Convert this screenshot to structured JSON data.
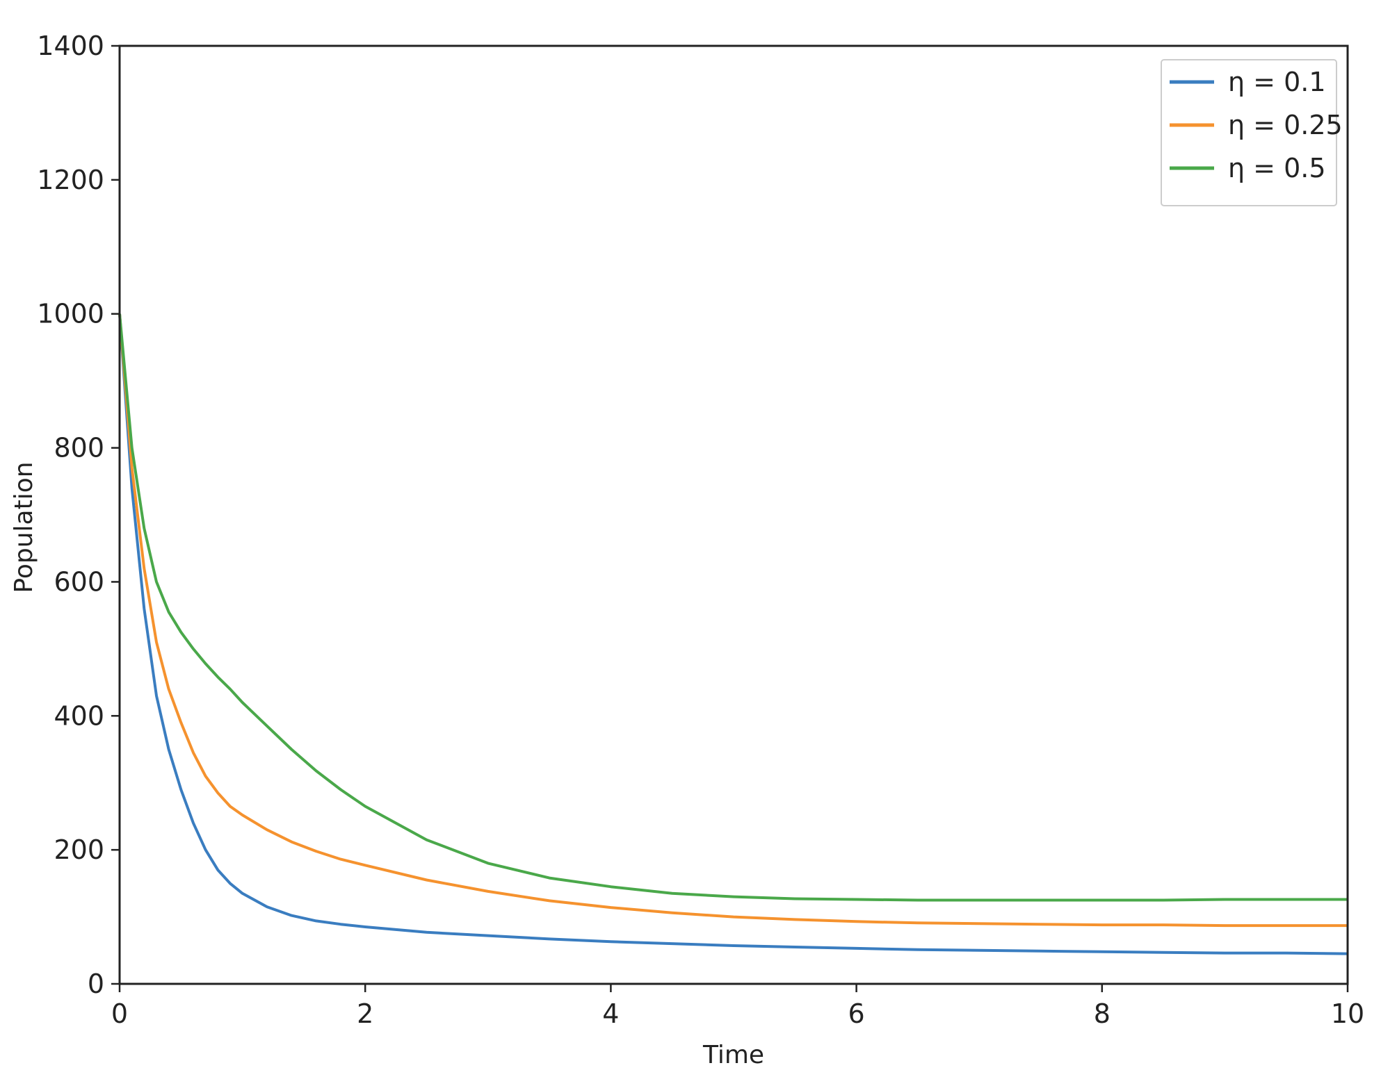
{
  "chart_data": {
    "type": "line",
    "title": "",
    "xlabel": "Time",
    "ylabel": "Population",
    "xlim": [
      0,
      10
    ],
    "ylim": [
      0,
      1400
    ],
    "xticks": [
      "0",
      "2",
      "4",
      "6",
      "8",
      "10"
    ],
    "yticks": [
      "0",
      "200",
      "400",
      "600",
      "800",
      "1000",
      "1200",
      "1400"
    ],
    "grid": false,
    "legend_position": "top-right",
    "series": [
      {
        "name": "η = 0.1",
        "color": "#3a7dc0",
        "x": [
          0,
          0.1,
          0.2,
          0.3,
          0.4,
          0.5,
          0.6,
          0.7,
          0.8,
          0.9,
          1.0,
          1.2,
          1.4,
          1.6,
          1.8,
          2.0,
          2.5,
          3.0,
          3.5,
          4.0,
          4.5,
          5.0,
          5.5,
          6.0,
          6.5,
          7.0,
          7.5,
          8.0,
          8.5,
          9.0,
          9.5,
          10.0
        ],
        "y": [
          1000,
          740,
          560,
          430,
          350,
          290,
          240,
          200,
          170,
          150,
          135,
          115,
          102,
          94,
          89,
          85,
          77,
          72,
          67,
          63,
          60,
          57,
          55,
          53,
          51,
          50,
          49,
          48,
          47,
          46,
          46,
          45
        ]
      },
      {
        "name": "η = 0.25",
        "color": "#f5922e",
        "x": [
          0,
          0.1,
          0.2,
          0.3,
          0.4,
          0.5,
          0.6,
          0.7,
          0.8,
          0.9,
          1.0,
          1.2,
          1.4,
          1.6,
          1.8,
          2.0,
          2.5,
          3.0,
          3.5,
          4.0,
          4.5,
          5.0,
          5.5,
          6.0,
          6.5,
          7.0,
          7.5,
          8.0,
          8.5,
          9.0,
          9.5,
          10.0
        ],
        "y": [
          1000,
          770,
          620,
          510,
          440,
          390,
          345,
          310,
          285,
          265,
          252,
          230,
          212,
          198,
          186,
          177,
          155,
          138,
          124,
          114,
          106,
          100,
          96,
          93,
          91,
          90,
          89,
          88,
          88,
          87,
          87,
          87
        ]
      },
      {
        "name": "η = 0.5",
        "color": "#4aa84a",
        "x": [
          0,
          0.1,
          0.2,
          0.3,
          0.4,
          0.5,
          0.6,
          0.7,
          0.8,
          0.9,
          1.0,
          1.2,
          1.4,
          1.6,
          1.8,
          2.0,
          2.5,
          3.0,
          3.5,
          4.0,
          4.5,
          5.0,
          5.5,
          6.0,
          6.5,
          7.0,
          7.5,
          8.0,
          8.5,
          9.0,
          9.5,
          10.0
        ],
        "y": [
          1000,
          800,
          680,
          600,
          555,
          525,
          500,
          478,
          458,
          440,
          420,
          385,
          350,
          318,
          290,
          265,
          215,
          180,
          158,
          145,
          135,
          130,
          127,
          126,
          125,
          125,
          125,
          125,
          125,
          126,
          126,
          126
        ]
      }
    ]
  }
}
